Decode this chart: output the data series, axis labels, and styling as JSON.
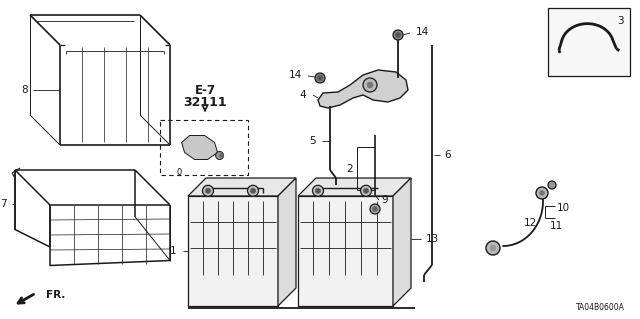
{
  "background_color": "#ffffff",
  "diagram_code": "TA04B0600A",
  "line_color": "#1a1a1a",
  "text_color": "#1a1a1a",
  "label_fontsize": 7.5,
  "small_fontsize": 6.5,
  "ref_label": "E-7",
  "ref_num": "32111",
  "fr_label": "FR.",
  "part3_label": "3",
  "part8_label": "8",
  "part7_label": "7",
  "part1_label": "1",
  "part2_label": "2",
  "part4_label": "4",
  "part5_label": "5",
  "part6_label": "6",
  "part9_label": "9",
  "part10_label": "10",
  "part11_label": "11",
  "part12_label": "12",
  "part13_label": "13",
  "part14_label": "14"
}
